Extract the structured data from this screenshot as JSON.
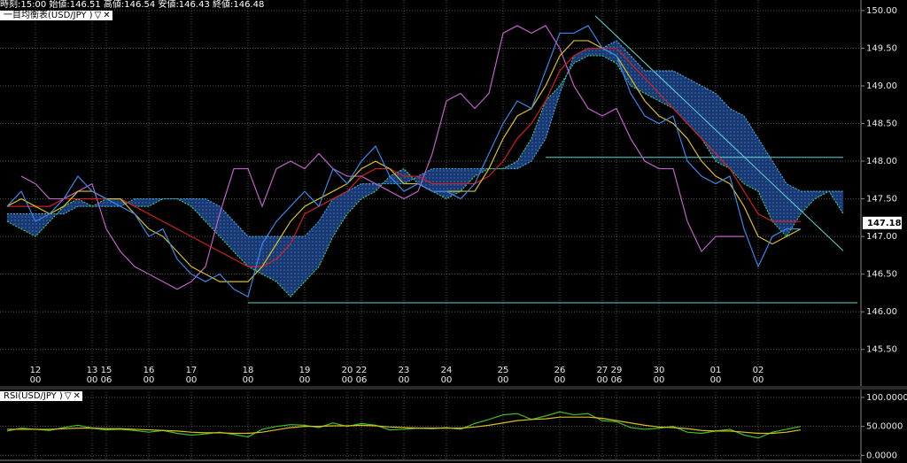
{
  "header": {
    "quote": "時刻:15:00 始値:146.51 高値:146.54 安値:146.43 終値:146.48",
    "indicator": "一目均衡表(USD/JPY )"
  },
  "chart_data": [
    {
      "type": "line",
      "categories": [
        null,
        null,
        "12",
        null,
        null,
        null,
        "13",
        "15",
        null,
        null,
        "16",
        null,
        null,
        "17",
        null,
        null,
        null,
        "18",
        null,
        null,
        null,
        "19",
        null,
        null,
        "20",
        "22",
        null,
        null,
        "23",
        null,
        null,
        "24",
        null,
        null,
        null,
        "25",
        null,
        null,
        null,
        "26",
        null,
        null,
        "27",
        "29",
        null,
        null,
        "30",
        null,
        null,
        null,
        "01",
        null,
        null,
        "02",
        null,
        null,
        null,
        null,
        null,
        null
      ],
      "sub_labels": [
        null,
        null,
        "00",
        null,
        null,
        null,
        "00",
        "06",
        null,
        null,
        "00",
        null,
        null,
        "00",
        null,
        null,
        null,
        "00",
        null,
        null,
        null,
        "00",
        null,
        null,
        "00",
        "06",
        null,
        null,
        "00",
        null,
        null,
        "00",
        null,
        null,
        null,
        "00",
        null,
        null,
        null,
        "00",
        null,
        null,
        "00",
        "06",
        null,
        null,
        "00",
        null,
        null,
        null,
        "00",
        null,
        null,
        "00",
        null,
        null,
        null,
        null,
        null,
        null
      ],
      "cloud_fill": "#1b3f80",
      "series": [
        {
          "color": "#3fbf5f",
          "dashed": true,
          "values": [
            147.2,
            147.1,
            147.0,
            147.2,
            147.4,
            147.5,
            147.4,
            147.5,
            147.5,
            147.4,
            147.4,
            147.5,
            147.5,
            147.4,
            147.2,
            147.0,
            146.8,
            146.6,
            146.5,
            146.4,
            146.2,
            146.4,
            146.6,
            147.0,
            147.3,
            147.5,
            147.6,
            147.8,
            147.9,
            147.7,
            147.6,
            147.5,
            147.6,
            147.8,
            147.9,
            147.9,
            148.0,
            148.3,
            148.8,
            149.0,
            149.3,
            149.4,
            149.4,
            149.3,
            149.0,
            148.9,
            148.8,
            148.7,
            148.5,
            148.3,
            148.0,
            147.9,
            147.7,
            147.6,
            147.2,
            147.0,
            147.3,
            147.5,
            147.6,
            147.3
          ]
        },
        {
          "color": "#3fa0c8",
          "dashed": true,
          "values": [
            147.3,
            147.3,
            147.3,
            147.3,
            147.3,
            147.4,
            147.4,
            147.4,
            147.4,
            147.5,
            147.5,
            147.5,
            147.5,
            147.5,
            147.5,
            147.4,
            147.2,
            147.0,
            147.0,
            147.0,
            147.0,
            147.0,
            147.2,
            147.5,
            147.6,
            147.7,
            147.7,
            147.7,
            147.7,
            147.8,
            147.9,
            147.9,
            147.9,
            147.9,
            147.9,
            147.9,
            147.9,
            148.0,
            148.3,
            148.9,
            149.4,
            149.5,
            149.5,
            149.6,
            149.4,
            149.2,
            149.2,
            149.2,
            149.1,
            149.0,
            148.9,
            148.7,
            148.6,
            148.3,
            148.0,
            147.7,
            147.6,
            147.6,
            147.6,
            147.6
          ]
        },
        {
          "color": "#c060c8",
          "values": [
            null,
            147.8,
            147.7,
            147.5,
            147.5,
            147.6,
            147.7,
            147.1,
            146.8,
            146.6,
            146.5,
            146.4,
            146.3,
            146.4,
            146.6,
            147.3,
            147.9,
            147.9,
            147.4,
            147.9,
            148.0,
            147.9,
            148.1,
            147.9,
            147.8,
            147.8,
            147.7,
            147.6,
            147.5,
            147.6,
            148.1,
            148.8,
            148.9,
            148.7,
            148.9,
            149.7,
            149.8,
            149.7,
            149.8,
            149.5,
            149.0,
            148.7,
            148.6,
            148.7,
            148.3,
            148.0,
            147.9,
            147.9,
            147.2,
            146.8,
            147.0,
            147.0,
            147.0,
            null,
            null,
            null,
            null,
            null,
            null,
            null
          ]
        },
        {
          "color": "#d02020",
          "values": [
            147.4,
            147.4,
            147.4,
            147.4,
            147.5,
            147.5,
            147.5,
            147.5,
            147.5,
            147.4,
            147.3,
            147.2,
            147.1,
            147.0,
            146.9,
            146.8,
            146.7,
            146.6,
            146.6,
            146.7,
            146.9,
            147.3,
            147.4,
            147.5,
            147.6,
            147.8,
            147.9,
            147.9,
            147.8,
            147.8,
            147.7,
            147.7,
            147.7,
            147.7,
            147.8,
            148.0,
            148.3,
            148.5,
            148.8,
            149.2,
            149.4,
            149.5,
            149.5,
            149.5,
            149.3,
            149.1,
            148.9,
            148.7,
            148.5,
            148.3,
            148.1,
            147.9,
            147.6,
            147.3,
            147.2,
            147.2,
            147.2,
            null,
            null,
            null
          ]
        },
        {
          "color": "#d8c020",
          "values": [
            147.4,
            147.5,
            147.4,
            147.3,
            147.4,
            147.6,
            147.6,
            147.5,
            147.5,
            147.3,
            147.1,
            147.0,
            146.8,
            146.6,
            146.5,
            146.4,
            146.4,
            146.4,
            146.6,
            146.9,
            147.2,
            147.4,
            147.5,
            147.6,
            147.7,
            147.9,
            148.0,
            147.9,
            147.7,
            147.7,
            147.6,
            147.6,
            147.6,
            147.6,
            147.9,
            148.3,
            148.6,
            148.7,
            149.0,
            149.4,
            149.6,
            149.6,
            149.5,
            149.4,
            149.1,
            148.8,
            148.6,
            148.5,
            148.3,
            148.0,
            147.8,
            147.7,
            147.4,
            147.0,
            146.9,
            147.0,
            147.1,
            null,
            null,
            null
          ]
        },
        {
          "color": "#3a86e8",
          "values": [
            147.4,
            147.6,
            147.2,
            147.3,
            147.5,
            147.8,
            147.6,
            147.5,
            147.4,
            147.3,
            147.0,
            147.1,
            146.7,
            146.5,
            146.4,
            146.5,
            146.3,
            146.2,
            146.9,
            147.2,
            147.4,
            147.6,
            147.4,
            147.9,
            147.7,
            148.0,
            148.2,
            147.8,
            147.6,
            147.7,
            147.6,
            147.6,
            147.5,
            147.7,
            148.1,
            148.5,
            148.8,
            148.7,
            149.2,
            149.7,
            149.7,
            149.8,
            149.5,
            149.4,
            148.9,
            148.6,
            148.5,
            148.6,
            148.0,
            147.8,
            147.7,
            147.8,
            147.1,
            146.6,
            147.0,
            147.1,
            147.1,
            null,
            null,
            null
          ]
        }
      ],
      "trend_lines": [
        {
          "color": "#5fd3d3",
          "x": [
            38,
            59
          ],
          "y": [
            148.05,
            148.05
          ]
        },
        {
          "color": "#5fd3d3",
          "x": [
            17,
            60
          ],
          "y": [
            146.12,
            146.12
          ]
        },
        {
          "color": "#5fd3d3",
          "x": [
            41.5,
            59
          ],
          "y": [
            149.93,
            146.81
          ]
        }
      ],
      "last_price": 147.18,
      "ylim": [
        145.05,
        150.14
      ],
      "yticks": [
        {
          "value": 145.5,
          "label": "145.50"
        },
        {
          "value": 146,
          "label": "146.00"
        },
        {
          "value": 146.5,
          "label": "146.50"
        },
        {
          "value": 147,
          "label": "147.00"
        },
        {
          "value": 147.5,
          "label": "147.50"
        },
        {
          "value": 148,
          "label": "148.00"
        },
        {
          "value": 148.5,
          "label": "148.50"
        },
        {
          "value": 149,
          "label": "149.00"
        },
        {
          "value": 149.5,
          "label": "149.50"
        },
        {
          "value": 150,
          "label": "150.00"
        }
      ],
      "grid": true
    },
    {
      "type": "line",
      "title": "RSI(USD/JPY )",
      "series": [
        {
          "color": "#40c020",
          "values": [
            42,
            47,
            45,
            43,
            48,
            52,
            47,
            44,
            45,
            43,
            40,
            43,
            38,
            35,
            37,
            40,
            36,
            32,
            45,
            50,
            53,
            52,
            48,
            56,
            50,
            55,
            52,
            44,
            45,
            47,
            46,
            48,
            45,
            55,
            62,
            70,
            72,
            62,
            68,
            75,
            70,
            72,
            60,
            58,
            48,
            45,
            47,
            50,
            40,
            38,
            42,
            45,
            35,
            30,
            40,
            45,
            50,
            null,
            null,
            null
          ]
        },
        {
          "color": "#d8c020",
          "values": [
            45,
            45,
            45,
            45,
            46,
            47,
            47,
            46,
            46,
            45,
            44,
            43,
            42,
            40,
            39,
            39,
            38,
            38,
            40,
            44,
            48,
            50,
            50,
            51,
            51,
            52,
            51,
            49,
            48,
            47,
            47,
            47,
            47,
            49,
            52,
            56,
            60,
            62,
            63,
            66,
            66,
            66,
            64,
            60,
            56,
            52,
            49,
            48,
            46,
            43,
            42,
            42,
            40,
            38,
            38,
            40,
            44,
            null,
            null,
            null
          ]
        }
      ],
      "ylim": [
        -7,
        109
      ],
      "yticks": [
        {
          "value": 0,
          "label": "0.0000"
        },
        {
          "value": 50,
          "label": "50.0000"
        },
        {
          "value": 100,
          "label": "100.0000"
        }
      ],
      "grid": true
    }
  ]
}
